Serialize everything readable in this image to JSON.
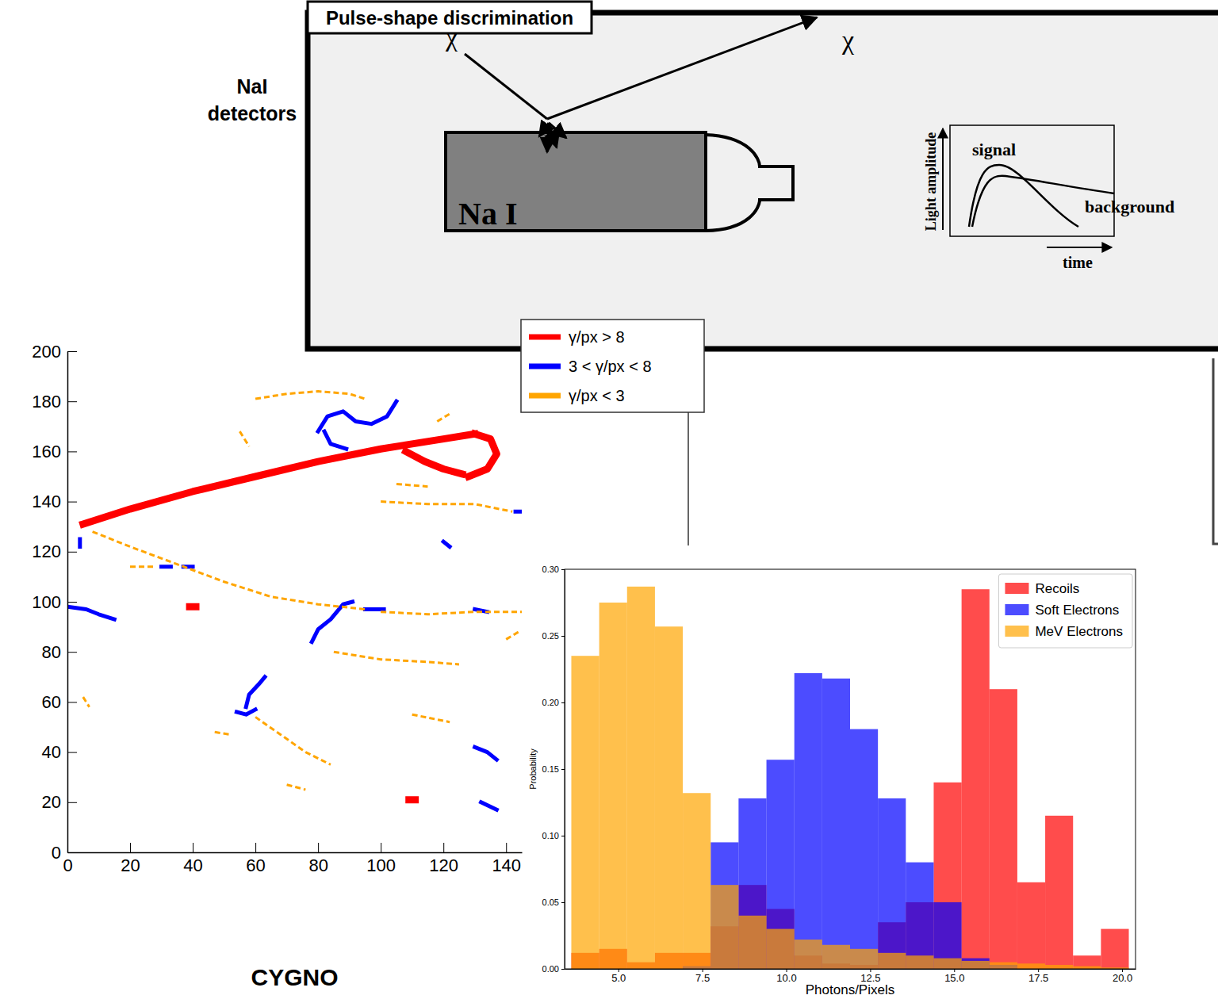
{
  "diagram": {
    "side_label": "NaI detectors",
    "box_title": "Pulse-shape discrimination",
    "crystal_label": "Na I",
    "particle_in": "χ",
    "particle_out": "χ",
    "inset": {
      "y_label": "Light amplitude",
      "x_label": "time",
      "curves": [
        "signal",
        "background"
      ]
    }
  },
  "chart_data": [
    {
      "type": "line",
      "title": "CYGNO",
      "xlim": [
        0,
        145
      ],
      "ylim": [
        0,
        200
      ],
      "xticks": [
        0,
        20,
        40,
        60,
        80,
        100,
        120,
        140
      ],
      "yticks": [
        0,
        20,
        40,
        60,
        80,
        100,
        120,
        140,
        160,
        180,
        200
      ],
      "legend": "right",
      "series": [
        {
          "name": "γ/px > 8",
          "color": "#ff0000",
          "line_style": "solid",
          "x": [
            5,
            20,
            40,
            60,
            80,
            100,
            120,
            130,
            null,
            108,
            114,
            120,
            126,
            null,
            130,
            135,
            137,
            134,
            128,
            null,
            39,
            41,
            null,
            109,
            111
          ],
          "values": [
            131,
            137,
            144,
            150,
            156,
            161,
            165,
            167,
            null,
            160,
            156,
            153,
            151,
            null,
            167,
            165,
            159,
            153,
            150,
            null,
            98,
            98,
            null,
            21,
            21
          ]
        },
        {
          "name": "3 < γ/px < 8",
          "color": "#0000ff",
          "line_style": "solid",
          "x": [
            80,
            83,
            88,
            92,
            97,
            102,
            105,
            null,
            82,
            84,
            89,
            null,
            0,
            6,
            10,
            15,
            null,
            78,
            80,
            84,
            88,
            91,
            null,
            57,
            58,
            61,
            63,
            null,
            54,
            57,
            60,
            null,
            130,
            134,
            137,
            null,
            30,
            33,
            null,
            37,
            40,
            null,
            95,
            101,
            null,
            130,
            134,
            null,
            120,
            122,
            null,
            132,
            137,
            null,
            4,
            4,
            null,
            143,
            145
          ],
          "values": [
            168,
            174,
            176,
            172,
            171,
            174,
            180,
            null,
            168,
            163,
            161,
            null,
            98,
            97,
            95,
            93,
            null,
            84,
            89,
            93,
            99,
            100,
            null,
            58,
            63,
            67,
            70,
            null,
            56,
            55,
            57,
            null,
            42,
            40,
            37,
            null,
            114,
            114,
            null,
            114,
            114,
            null,
            97,
            97,
            null,
            97,
            96,
            null,
            124,
            122,
            null,
            20,
            17,
            null,
            122,
            125,
            null,
            136,
            136
          ]
        },
        {
          "name": "γ/px < 3",
          "color": "#ffa500",
          "line_style": "dashed",
          "x": [
            60,
            70,
            80,
            90,
            95,
            null,
            8,
            20,
            35,
            50,
            65,
            80,
            95,
            null,
            100,
            115,
            130,
            145,
            null,
            20,
            28,
            null,
            100,
            115,
            130,
            142,
            null,
            85,
            100,
            115,
            125,
            null,
            60,
            68,
            76,
            84,
            null,
            105,
            115,
            null,
            55,
            58,
            null,
            110,
            122,
            null,
            140,
            144,
            null,
            70,
            76,
            null,
            5,
            7,
            null,
            47,
            52,
            null,
            118,
            122
          ],
          "values": [
            181,
            183,
            184,
            183,
            181,
            null,
            128,
            122,
            115,
            108,
            102,
            99,
            97,
            null,
            96,
            95,
            96,
            96,
            null,
            114,
            114,
            null,
            140,
            139,
            139,
            136,
            null,
            80,
            77,
            76,
            75,
            null,
            54,
            47,
            40,
            35,
            null,
            147,
            146,
            null,
            168,
            162,
            null,
            55,
            52,
            null,
            85,
            88,
            null,
            27,
            25,
            null,
            62,
            58,
            null,
            48,
            47,
            null,
            172,
            175
          ]
        }
      ]
    },
    {
      "type": "histogram",
      "xlabel": "Photons/Pixels",
      "ylabel": "Probability",
      "bins": [
        3.6,
        4.43,
        5.26,
        6.09,
        6.92,
        7.75,
        8.58,
        9.41,
        10.24,
        11.07,
        11.9,
        12.73,
        13.56,
        14.39,
        15.22,
        16.05,
        16.88,
        17.71,
        18.54,
        19.37,
        20.2
      ],
      "xlim": [
        3.4,
        20.4
      ],
      "ylim": [
        0,
        0.3
      ],
      "xticks": [
        {
          "value": 5,
          "label": "5.0"
        },
        {
          "value": 7.5,
          "label": "7.5"
        },
        {
          "value": 10,
          "label": "10.0"
        },
        {
          "value": 12.5,
          "label": "12.5"
        },
        {
          "value": 15,
          "label": "15.0"
        },
        {
          "value": 17.5,
          "label": "17.5"
        },
        {
          "value": 20,
          "label": "20.0"
        }
      ],
      "yticks": [
        {
          "value": 0,
          "label": "0.00"
        },
        {
          "value": 0.05,
          "label": "0.05"
        },
        {
          "value": 0.1,
          "label": "0.10"
        },
        {
          "value": 0.15,
          "label": "0.15"
        },
        {
          "value": 0.2,
          "label": "0.20"
        },
        {
          "value": 0.25,
          "label": "0.25"
        },
        {
          "value": 0.3,
          "label": "0.30"
        }
      ],
      "legend": "upper right",
      "series": [
        {
          "name": "Recoils",
          "color": "#ff0000",
          "values": [
            0.012,
            0.015,
            0.005,
            0.012,
            0.012,
            0.032,
            0.063,
            0.045,
            0.01,
            0.004,
            0.003,
            0.035,
            0.05,
            0.14,
            0.285,
            0.21,
            0.065,
            0.115,
            0.01,
            0.03
          ]
        },
        {
          "name": "Soft Electrons",
          "color": "#0000ff",
          "values": [
            0,
            0,
            0,
            0,
            0.002,
            0.095,
            0.128,
            0.157,
            0.222,
            0.218,
            0.18,
            0.128,
            0.08,
            0.05,
            0.008,
            0.003,
            0,
            0,
            0,
            0
          ]
        },
        {
          "name": "MeV Electrons",
          "color": "#ffa500",
          "values": [
            0.235,
            0.275,
            0.287,
            0.257,
            0.132,
            0.063,
            0.04,
            0.03,
            0.022,
            0.018,
            0.015,
            0.012,
            0.01,
            0.008,
            0.006,
            0.005,
            0.004,
            0.003,
            0.002,
            0.001
          ]
        }
      ]
    }
  ]
}
